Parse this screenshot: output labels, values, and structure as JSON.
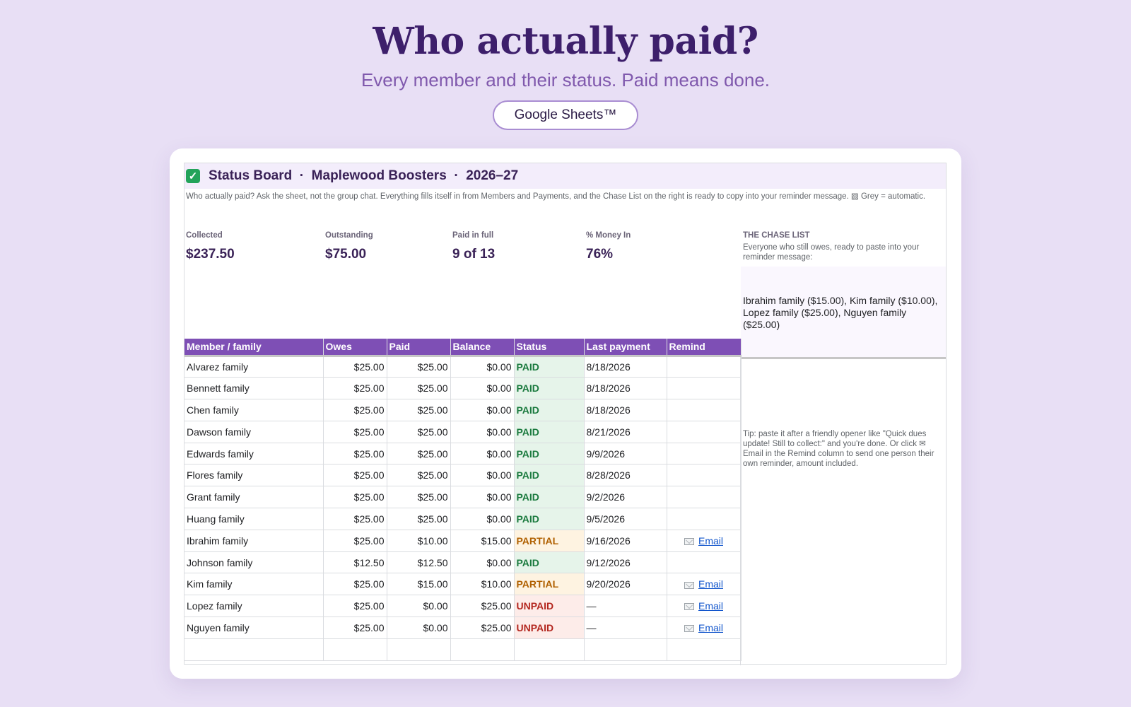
{
  "hero": {
    "title": "Who actually paid?",
    "subtitle": "Every member and their status. Paid means done.",
    "badge": "Google Sheets™"
  },
  "sheet": {
    "title": "Status Board  ·  Maplewood Boosters  ·  2026–27",
    "title_icon": "check-mark-icon",
    "description": "Who actually paid? Ask the sheet, not the group chat. Everything fills itself in from Members and Payments, and the Chase List on the right is ready to copy into your reminder message.  ▨ Grey = automatic."
  },
  "stats": [
    {
      "label": "Collected",
      "value": "$237.50"
    },
    {
      "label": "Outstanding",
      "value": "$75.00"
    },
    {
      "label": "Paid in full",
      "value": "9 of 13"
    },
    {
      "label": "% Money In",
      "value": "76%"
    }
  ],
  "chase": {
    "label": "THE CHASE LIST",
    "description": "Everyone who still owes, ready to paste into your reminder message:",
    "list_text": "Ibrahim family ($15.00), Kim family ($10.00), Lopez family ($25.00), Nguyen family ($25.00)",
    "tip": "Tip: paste it after a friendly opener like \"Quick dues update! Still to collect:\" and you're done. Or click ✉ Email in the Remind column to send one person their own reminder, amount included."
  },
  "table": {
    "headers": [
      "Member / family",
      "Owes",
      "Paid",
      "Balance",
      "Status",
      "Last payment",
      "Remind"
    ],
    "rows": [
      {
        "member": "Alvarez family",
        "owes": "$25.00",
        "paid": "$25.00",
        "balance": "$0.00",
        "status": "PAID",
        "last": "8/18/2026",
        "remind": ""
      },
      {
        "member": "Bennett family",
        "owes": "$25.00",
        "paid": "$25.00",
        "balance": "$0.00",
        "status": "PAID",
        "last": "8/18/2026",
        "remind": ""
      },
      {
        "member": "Chen family",
        "owes": "$25.00",
        "paid": "$25.00",
        "balance": "$0.00",
        "status": "PAID",
        "last": "8/18/2026",
        "remind": ""
      },
      {
        "member": "Dawson family",
        "owes": "$25.00",
        "paid": "$25.00",
        "balance": "$0.00",
        "status": "PAID",
        "last": "8/21/2026",
        "remind": ""
      },
      {
        "member": "Edwards family",
        "owes": "$25.00",
        "paid": "$25.00",
        "balance": "$0.00",
        "status": "PAID",
        "last": "9/9/2026",
        "remind": ""
      },
      {
        "member": "Flores family",
        "owes": "$25.00",
        "paid": "$25.00",
        "balance": "$0.00",
        "status": "PAID",
        "last": "8/28/2026",
        "remind": ""
      },
      {
        "member": "Grant family",
        "owes": "$25.00",
        "paid": "$25.00",
        "balance": "$0.00",
        "status": "PAID",
        "last": "9/2/2026",
        "remind": ""
      },
      {
        "member": "Huang family",
        "owes": "$25.00",
        "paid": "$25.00",
        "balance": "$0.00",
        "status": "PAID",
        "last": "9/5/2026",
        "remind": ""
      },
      {
        "member": "Ibrahim family",
        "owes": "$25.00",
        "paid": "$10.00",
        "balance": "$15.00",
        "status": "PARTIAL",
        "last": "9/16/2026",
        "remind": "Email"
      },
      {
        "member": "Johnson family",
        "owes": "$12.50",
        "paid": "$12.50",
        "balance": "$0.00",
        "status": "PAID",
        "last": "9/12/2026",
        "remind": ""
      },
      {
        "member": "Kim family",
        "owes": "$25.00",
        "paid": "$15.00",
        "balance": "$10.00",
        "status": "PARTIAL",
        "last": "9/20/2026",
        "remind": "Email"
      },
      {
        "member": "Lopez family",
        "owes": "$25.00",
        "paid": "$0.00",
        "balance": "$25.00",
        "status": "UNPAID",
        "last": "—",
        "remind": "Email"
      },
      {
        "member": "Nguyen family",
        "owes": "$25.00",
        "paid": "$0.00",
        "balance": "$25.00",
        "status": "UNPAID",
        "last": "—",
        "remind": "Email"
      }
    ]
  },
  "colors": {
    "page_bg": "#e8dff5",
    "header_purple": "#7e4fb5",
    "title_purple": "#3d1f6b",
    "paid_green": "#1a7a3e",
    "partial_orange": "#b06000",
    "unpaid_red": "#b3261e",
    "link_blue": "#1155cc"
  }
}
